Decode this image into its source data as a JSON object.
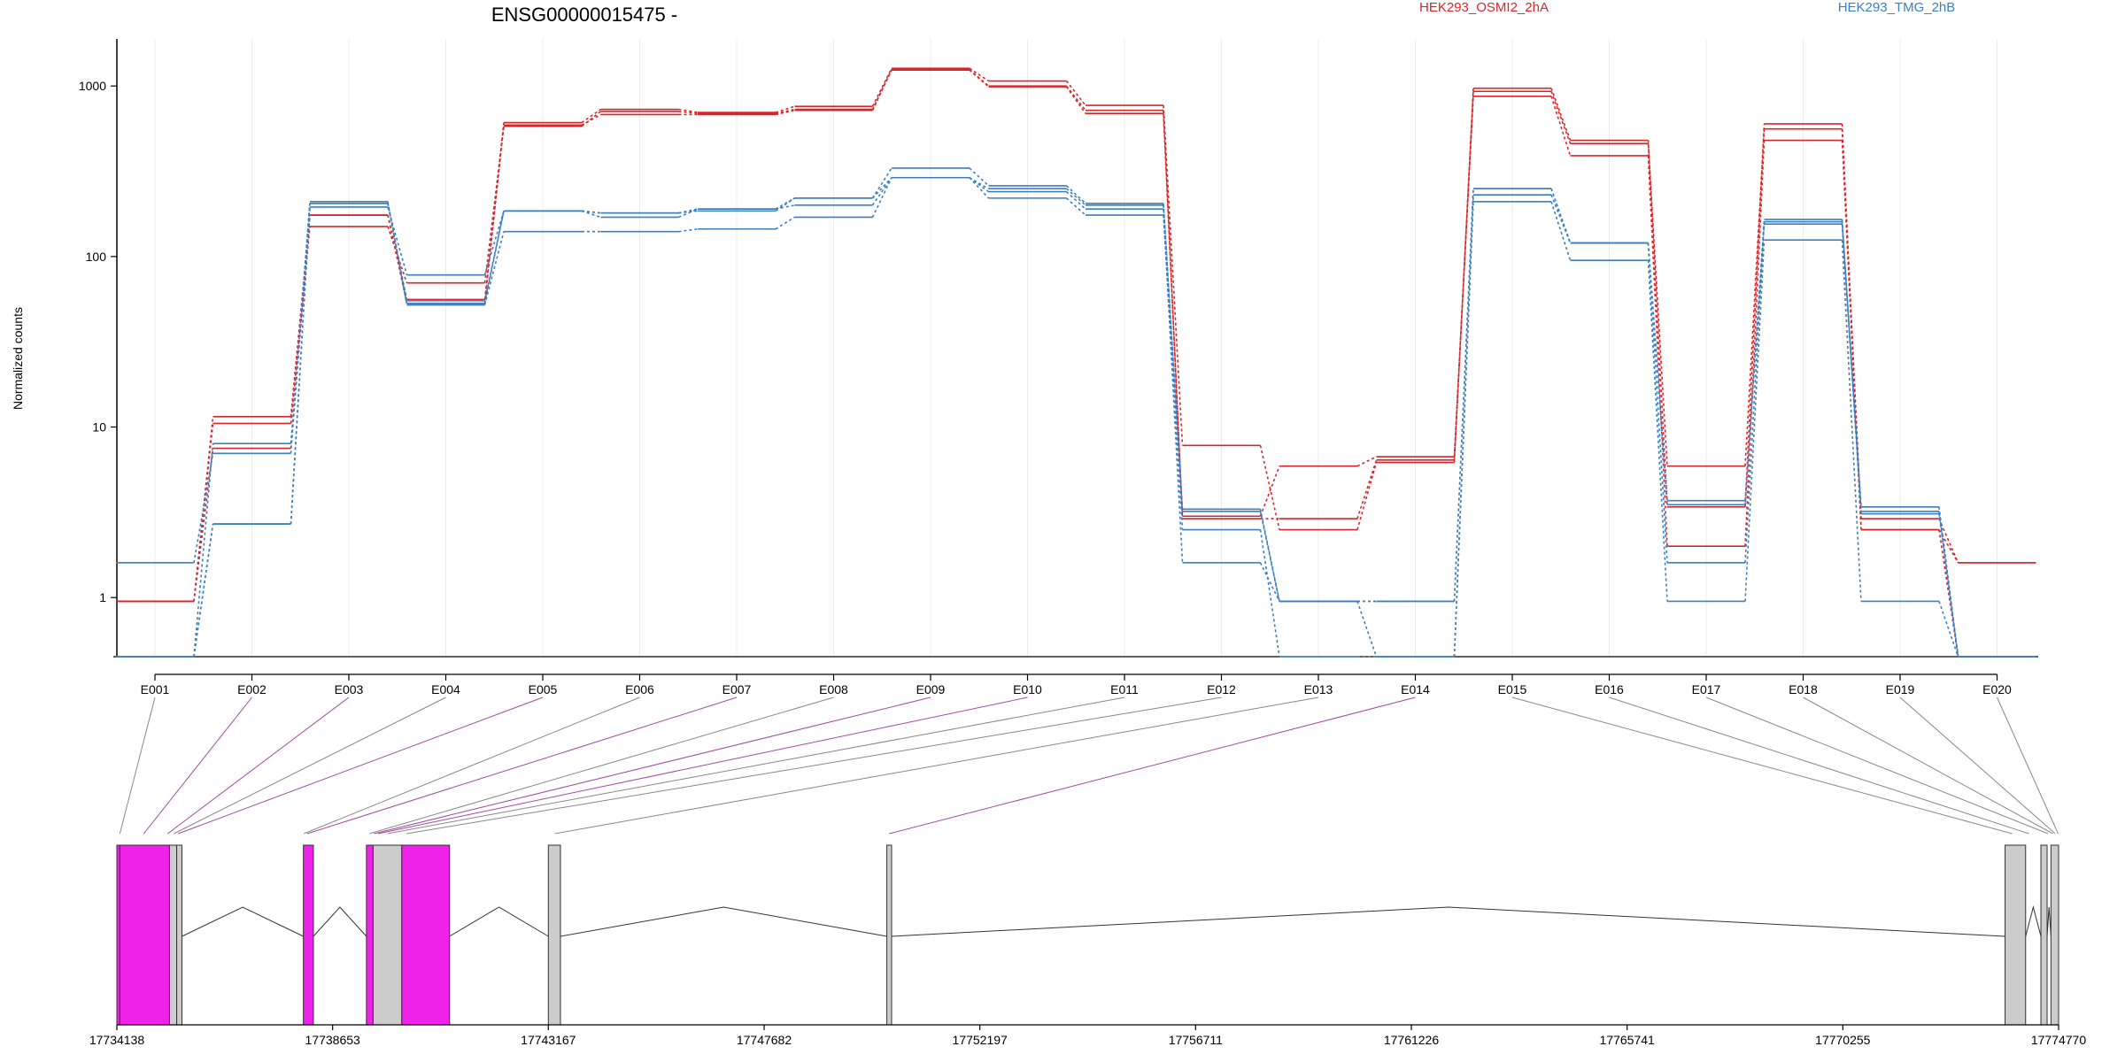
{
  "chart_data": {
    "type": "line",
    "title": "ENSG00000015475 -",
    "ylabel": "Normalized counts",
    "yscale": "log",
    "ylim": [
      0.45,
      1800
    ],
    "yticks": [
      1,
      10,
      100,
      1000
    ],
    "ytick_labels": [
      "1",
      "10",
      "100",
      "1000"
    ],
    "grid": "vertical",
    "categories": [
      "E001",
      "E002",
      "E003",
      "E004",
      "E005",
      "E006",
      "E007",
      "E008",
      "E009",
      "E010",
      "E011",
      "E012",
      "E013",
      "E014",
      "E015",
      "E016",
      "E017",
      "E018",
      "E019",
      "E020"
    ],
    "legend": [
      {
        "label": "HEK293_OSMI2_2hA",
        "color": "#d7262b"
      },
      {
        "label": "HEK293_TMG_2hB",
        "color": "#3a7fbf"
      }
    ],
    "series": [
      {
        "group": "HEK293_OSMI2_2hA",
        "color": "#d7262b",
        "values": [
          0.95,
          11.5,
          175,
          56,
          610,
          730,
          700,
          760,
          1270,
          1070,
          770,
          7.8,
          2.5,
          6.2,
          970,
          480,
          3.4,
          600,
          2.5,
          1.6
        ]
      },
      {
        "group": "HEK293_OSMI2_2hA",
        "color": "#d7262b",
        "values": [
          0.95,
          10.5,
          150,
          70,
          580,
          710,
          690,
          730,
          1250,
          1000,
          720,
          2.9,
          2.9,
          6.4,
          930,
          460,
          5.9,
          560,
          2.9,
          1.6
        ]
      },
      {
        "group": "HEK293_OSMI2_2hA",
        "color": "#d7262b",
        "values": [
          0.95,
          7.5,
          175,
          53,
          590,
          680,
          680,
          720,
          1240,
          990,
          690,
          3.0,
          5.9,
          6.7,
          870,
          390,
          2.0,
          480,
          2.5,
          0.45
        ]
      },
      {
        "group": "HEK293_TMG_2hB",
        "color": "#3a7fbf",
        "values": [
          1.6,
          7.0,
          205,
          55,
          185,
          180,
          190,
          220,
          330,
          260,
          205,
          3.2,
          0.95,
          0.95,
          250,
          120,
          3.5,
          165,
          3.2,
          0.45
        ]
      },
      {
        "group": "HEK293_TMG_2hB",
        "color": "#3a7fbf",
        "values": [
          0.45,
          2.7,
          195,
          78,
          185,
          170,
          190,
          200,
          290,
          240,
          190,
          1.6,
          0.95,
          0.45,
          230,
          120,
          3.7,
          155,
          3.1,
          0.45
        ]
      },
      {
        "group": "HEK293_TMG_2hB",
        "color": "#3a7fbf",
        "values": [
          0.45,
          2.7,
          210,
          52,
          140,
          140,
          145,
          170,
          290,
          220,
          175,
          2.5,
          0.45,
          0.45,
          210,
          95,
          0.95,
          125,
          0.95,
          0.45
        ]
      },
      {
        "group": "HEK293_TMG_2hB",
        "color": "#3a7fbf",
        "values": [
          0.45,
          8.0,
          205,
          53,
          185,
          180,
          185,
          220,
          290,
          250,
          200,
          3.3,
          0.95,
          0.95,
          250,
          120,
          1.6,
          160,
          3.4,
          0.45
        ]
      }
    ],
    "gene_model": {
      "coord_range": [
        17734138,
        17774770
      ],
      "coord_ticks": [
        17734138,
        17738653,
        17743167,
        17747682,
        17752197,
        17756711,
        17761226,
        17765741,
        17770255,
        17774770
      ],
      "coord_tick_labels": [
        "17734138",
        "17738653",
        "17743167",
        "17747682",
        "17752197",
        "17756711",
        "17761226",
        "17765741",
        "17770255",
        "17774770"
      ],
      "highlight_color": "#ee22e8",
      "plain_color": "#cccccc",
      "exons": [
        {
          "id": "E001",
          "start": 17734138,
          "end": 17734200,
          "highlight": true
        },
        {
          "id": "E002",
          "start": 17734200,
          "end": 17735240,
          "highlight": true
        },
        {
          "id": "E003",
          "start": 17735240,
          "end": 17735390,
          "highlight": false
        },
        {
          "id": "E004",
          "start": 17735390,
          "end": 17735500,
          "highlight": false
        },
        {
          "id": "E005",
          "start": 17738040,
          "end": 17738250,
          "highlight": true
        },
        {
          "id": "E006",
          "start": 17739360,
          "end": 17739500,
          "highlight": true
        },
        {
          "id": "E007",
          "start": 17739500,
          "end": 17740100,
          "highlight": false
        },
        {
          "id": "E008",
          "start": 17740100,
          "end": 17741100,
          "highlight": true
        },
        {
          "id": "E009",
          "start": 17743167,
          "end": 17743420,
          "highlight": false
        },
        {
          "id": "E010",
          "start": 17750250,
          "end": 17750350,
          "highlight": false
        },
        {
          "id": "E011",
          "start": 17773650,
          "end": 17774080,
          "highlight": false
        },
        {
          "id": "E012",
          "start": 17774400,
          "end": 17774530,
          "highlight": false
        },
        {
          "id": "E013",
          "start": 17774610,
          "end": 17774770,
          "highlight": false
        }
      ],
      "connector_targets": [
        17734200,
        17734700,
        17735200,
        17735330,
        17735420,
        17738050,
        17738120,
        17739420,
        17739520,
        17739600,
        17739800,
        17740200,
        17743300,
        17750300,
        17773800,
        17774150,
        17774550,
        17774650,
        17774700,
        17774760
      ],
      "connector_highlight": [
        false,
        true,
        true,
        false,
        true,
        false,
        true,
        false,
        true,
        true,
        false,
        false,
        false,
        true,
        false,
        false,
        false,
        false,
        false,
        false
      ],
      "introns": [
        [
          17735500,
          17738040
        ],
        [
          17738250,
          17739360
        ],
        [
          17741100,
          17743167
        ],
        [
          17743420,
          17750250
        ],
        [
          17750350,
          17773650
        ],
        [
          17774080,
          17774400
        ],
        [
          17774530,
          17774610
        ]
      ]
    }
  }
}
